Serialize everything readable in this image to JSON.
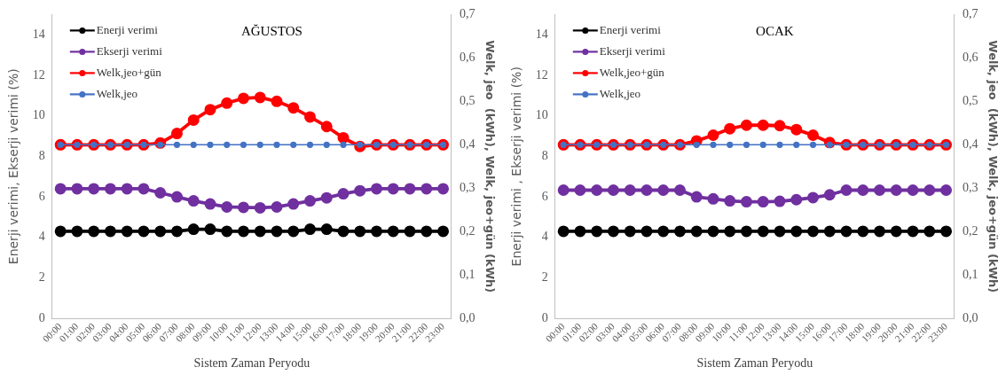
{
  "chart_data": [
    {
      "type": "line",
      "title": "AĞUSTOS",
      "xlabel": "Sistem Zaman Peryodu",
      "ylabel": "Enerji verimi, Ekserji verimi (%)",
      "y2label": "Welk, jeo  (kWh), Welk, jeo+gün (kWh)",
      "categories": [
        "00:00",
        "01:00",
        "02:00",
        "03:00",
        "04:00",
        "05:00",
        "06:00",
        "07:00",
        "08:00",
        "09:00",
        "10:00",
        "11:00",
        "12:00",
        "13:00",
        "14:00",
        "15:00",
        "16:00",
        "17:00",
        "18:00",
        "19:00",
        "20:00",
        "21:00",
        "22:00",
        "23:00"
      ],
      "series": [
        {
          "name": "Enerji verimi",
          "color": "#000000",
          "values": [
            4.3,
            4.3,
            4.3,
            4.3,
            4.3,
            4.3,
            4.3,
            4.3,
            4.4,
            4.4,
            4.3,
            4.3,
            4.3,
            4.3,
            4.3,
            4.4,
            4.4,
            4.3,
            4.3,
            4.3,
            4.3,
            4.3,
            4.3,
            4.3
          ]
        },
        {
          "name": "Ekserji verimi",
          "color": "#7030a0",
          "values": [
            6.4,
            6.4,
            6.4,
            6.4,
            6.4,
            6.4,
            6.2,
            6.0,
            5.8,
            5.65,
            5.5,
            5.48,
            5.46,
            5.5,
            5.65,
            5.8,
            5.95,
            6.15,
            6.3,
            6.4,
            6.4,
            6.4,
            6.4,
            6.4
          ]
        },
        {
          "name": "Welk,jeo+gün",
          "color": "#ff0000",
          "axis": "y2",
          "values": [
            0.4,
            0.4,
            0.4,
            0.4,
            0.4,
            0.4,
            0.404,
            0.426,
            0.457,
            0.481,
            0.496,
            0.507,
            0.509,
            0.5,
            0.485,
            0.464,
            0.442,
            0.416,
            0.396,
            0.4,
            0.4,
            0.4,
            0.4,
            0.4
          ]
        },
        {
          "name": "Welk,jeo",
          "color": "#4472c4",
          "axis": "y2",
          "values": [
            0.4,
            0.4,
            0.4,
            0.4,
            0.4,
            0.4,
            0.4,
            0.4,
            0.4,
            0.4,
            0.4,
            0.4,
            0.4,
            0.4,
            0.4,
            0.4,
            0.4,
            0.4,
            0.4,
            0.4,
            0.4,
            0.4,
            0.4,
            0.4
          ]
        }
      ],
      "ylim": [
        0,
        15
      ],
      "yticks": [
        0,
        2,
        4,
        6,
        8,
        10,
        12,
        14
      ],
      "y2lim": [
        0,
        0.7
      ],
      "y2ticks": [
        {
          "value": 0,
          "label": "0,0"
        },
        {
          "value": 0.1,
          "label": "0,1"
        },
        {
          "value": 0.2,
          "label": "0,2"
        },
        {
          "value": 0.3,
          "label": "0,3"
        },
        {
          "value": 0.4,
          "label": "0,4"
        },
        {
          "value": 0.5,
          "label": "0,5"
        },
        {
          "value": 0.6,
          "label": "0,6"
        },
        {
          "value": 0.7,
          "label": "0,7"
        }
      ],
      "grid": false,
      "legend": "top left",
      "marker": "circle",
      "line_style": "solid"
    },
    {
      "type": "line",
      "title": "OCAK",
      "xlabel": "Sistem Zaman Peryodu",
      "ylabel": "Enerji verimi , Ekserji verimi (%)",
      "y2label": "Welk, jeo  (kWh), Welk, jeo+gün (kWh)",
      "categories": [
        "00:00",
        "01:00",
        "02:00",
        "03:00",
        "04:00",
        "05:00",
        "06:00",
        "07:00",
        "08:00",
        "09:00",
        "10:00",
        "11:00",
        "12:00",
        "13:00",
        "14:00",
        "15:00",
        "16:00",
        "17:00",
        "18:00",
        "19:00",
        "20:00",
        "21:00",
        "22:00",
        "23:00"
      ],
      "series": [
        {
          "name": "Enerji verimi",
          "color": "#000000",
          "values": [
            4.3,
            4.3,
            4.3,
            4.3,
            4.3,
            4.3,
            4.3,
            4.3,
            4.3,
            4.3,
            4.3,
            4.3,
            4.3,
            4.3,
            4.3,
            4.3,
            4.3,
            4.3,
            4.3,
            4.3,
            4.3,
            4.3,
            4.3,
            4.3
          ]
        },
        {
          "name": "Ekserji verimi",
          "color": "#7030a0",
          "values": [
            6.33,
            6.33,
            6.33,
            6.33,
            6.33,
            6.33,
            6.33,
            6.33,
            6.0,
            5.9,
            5.8,
            5.76,
            5.76,
            5.78,
            5.86,
            5.96,
            6.1,
            6.33,
            6.33,
            6.33,
            6.33,
            6.33,
            6.33,
            6.33
          ]
        },
        {
          "name": "Welk,jeo+gün",
          "color": "#ff0000",
          "axis": "y2",
          "values": [
            0.4,
            0.4,
            0.4,
            0.4,
            0.4,
            0.4,
            0.4,
            0.4,
            0.409,
            0.422,
            0.437,
            0.445,
            0.445,
            0.444,
            0.435,
            0.422,
            0.405,
            0.4,
            0.4,
            0.4,
            0.4,
            0.4,
            0.4,
            0.4
          ]
        },
        {
          "name": "Welk,jeo",
          "color": "#4472c4",
          "axis": "y2",
          "values": [
            0.4,
            0.4,
            0.4,
            0.4,
            0.4,
            0.4,
            0.4,
            0.4,
            0.4,
            0.4,
            0.4,
            0.4,
            0.4,
            0.4,
            0.4,
            0.4,
            0.4,
            0.4,
            0.4,
            0.4,
            0.4,
            0.4,
            0.4,
            0.4
          ]
        }
      ],
      "ylim": [
        0,
        15
      ],
      "yticks": [
        0,
        2,
        4,
        6,
        8,
        10,
        12,
        14
      ],
      "y2lim": [
        0,
        0.7
      ],
      "y2ticks": [
        {
          "value": 0,
          "label": "0,0"
        },
        {
          "value": 0.1,
          "label": "0,1"
        },
        {
          "value": 0.2,
          "label": "0,2"
        },
        {
          "value": 0.3,
          "label": "0,3"
        },
        {
          "value": 0.4,
          "label": "0,4"
        },
        {
          "value": 0.5,
          "label": "0,5"
        },
        {
          "value": 0.6,
          "label": "0,6"
        },
        {
          "value": 0.7,
          "label": "0,7"
        }
      ],
      "grid": false,
      "legend": "top left",
      "marker": "circle",
      "line_style": "solid"
    }
  ]
}
